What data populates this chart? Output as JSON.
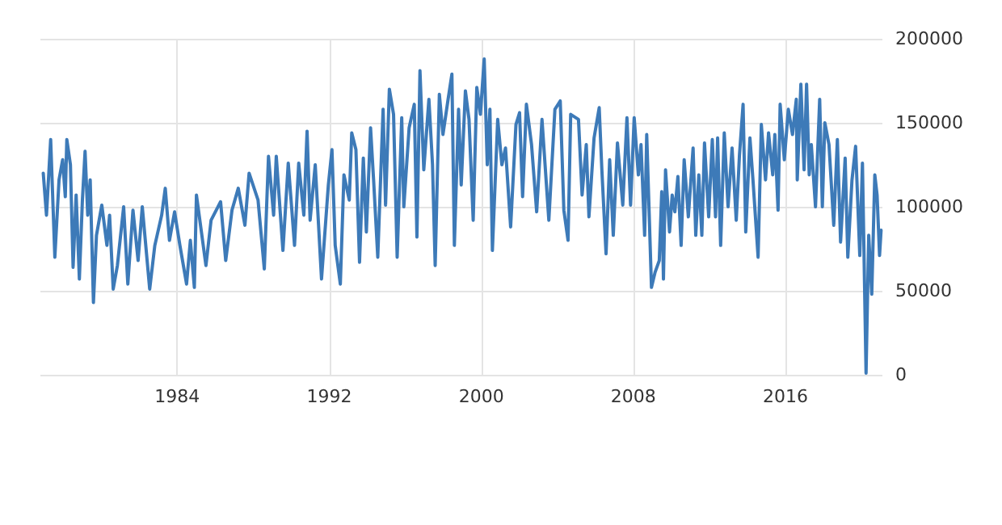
{
  "chart_data": {
    "type": "line",
    "x": [
      1976.95,
      1977.12,
      1977.34,
      1977.56,
      1977.78,
      1977.97,
      1978.11,
      1978.19,
      1978.38,
      1978.52,
      1978.68,
      1978.85,
      1979.01,
      1979.15,
      1979.29,
      1979.42,
      1979.59,
      1979.75,
      1980.03,
      1980.3,
      1980.44,
      1980.63,
      1980.85,
      1981.18,
      1981.4,
      1981.67,
      1981.94,
      1982.16,
      1982.55,
      1982.82,
      1983.18,
      1983.37,
      1983.59,
      1983.86,
      1984.14,
      1984.49,
      1984.69,
      1984.9,
      1985.01,
      1985.51,
      1985.78,
      1986.28,
      1986.55,
      1986.88,
      1987.21,
      1987.56,
      1987.78,
      1988.25,
      1988.58,
      1988.8,
      1989.07,
      1989.21,
      1989.56,
      1989.84,
      1990.17,
      1990.39,
      1990.66,
      1990.83,
      1990.99,
      1991.26,
      1991.59,
      1991.95,
      1992.14,
      1992.31,
      1992.58,
      1992.77,
      1993.05,
      1993.18,
      1993.4,
      1993.59,
      1993.79,
      1993.95,
      1994.17,
      1994.33,
      1994.55,
      1994.83,
      1994.96,
      1995.16,
      1995.38,
      1995.57,
      1995.81,
      1995.92,
      1996.2,
      1996.47,
      1996.61,
      1996.77,
      1996.97,
      1997.24,
      1997.43,
      1997.57,
      1997.79,
      1997.98,
      1998.25,
      1998.45,
      1998.58,
      1998.8,
      1998.94,
      1999.16,
      1999.35,
      1999.57,
      1999.76,
      1999.95,
      2000.15,
      2000.31,
      2000.45,
      2000.58,
      2000.86,
      2001.08,
      2001.27,
      2001.54,
      2001.82,
      2002.01,
      2002.17,
      2002.37,
      2002.64,
      2002.91,
      2003.19,
      2003.55,
      2003.87,
      2004.15,
      2004.34,
      2004.56,
      2004.7,
      2005.11,
      2005.3,
      2005.52,
      2005.66,
      2005.93,
      2006.2,
      2006.34,
      2006.56,
      2006.75,
      2006.94,
      2007.16,
      2007.44,
      2007.66,
      2007.85,
      2008.04,
      2008.26,
      2008.4,
      2008.59,
      2008.7,
      2008.95,
      2009.14,
      2009.36,
      2009.49,
      2009.58,
      2009.69,
      2009.9,
      2010.04,
      2010.18,
      2010.34,
      2010.51,
      2010.67,
      2010.89,
      2011.14,
      2011.28,
      2011.44,
      2011.6,
      2011.74,
      2011.96,
      2012.15,
      2012.32,
      2012.43,
      2012.59,
      2012.78,
      2012.98,
      2013.19,
      2013.41,
      2013.58,
      2013.77,
      2013.91,
      2014.13,
      2014.29,
      2014.56,
      2014.73,
      2014.95,
      2015.11,
      2015.33,
      2015.44,
      2015.61,
      2015.72,
      2015.94,
      2016.15,
      2016.37,
      2016.57,
      2016.62,
      2016.81,
      2016.98,
      2017.11,
      2017.25,
      2017.36,
      2017.58,
      2017.8,
      2017.94,
      2018.07,
      2018.29,
      2018.54,
      2018.73,
      2018.9,
      2019.14,
      2019.28,
      2019.5,
      2019.69,
      2019.91,
      2020.05,
      2020.24,
      2020.38,
      2020.54,
      2020.7,
      2020.82,
      2020.95,
      2021.03
    ],
    "series": [
      {
        "color": "#3d7ab8",
        "values": [
          120000,
          95000,
          140000,
          70000,
          116000,
          128000,
          106000,
          140000,
          125000,
          64000,
          107000,
          57000,
          104000,
          133000,
          95000,
          116000,
          43000,
          83000,
          101000,
          77000,
          95000,
          51000,
          65000,
          100000,
          54000,
          98000,
          68000,
          100000,
          51000,
          77000,
          95000,
          111000,
          80000,
          97000,
          77000,
          54000,
          80000,
          52000,
          107000,
          65000,
          92000,
          103000,
          68000,
          98000,
          111000,
          89000,
          120000,
          104000,
          63000,
          130000,
          95000,
          130000,
          74000,
          126000,
          77000,
          126000,
          95000,
          145000,
          92000,
          125000,
          57000,
          113000,
          134000,
          77000,
          54000,
          119000,
          104000,
          144000,
          134000,
          67000,
          129000,
          85000,
          147000,
          116000,
          70000,
          158000,
          101000,
          170000,
          155000,
          70000,
          153000,
          100000,
          147000,
          161000,
          82000,
          181000,
          122000,
          164000,
          125000,
          65000,
          167000,
          143000,
          164000,
          179000,
          77000,
          158000,
          113000,
          169000,
          152000,
          92000,
          171000,
          155000,
          188000,
          125000,
          158000,
          74000,
          152000,
          125000,
          135000,
          88000,
          149000,
          156000,
          106000,
          161000,
          137000,
          97000,
          152000,
          92000,
          158000,
          163000,
          98000,
          80000,
          155000,
          152000,
          107000,
          137000,
          94000,
          141000,
          159000,
          122000,
          72000,
          128000,
          83000,
          138000,
          101000,
          153000,
          101000,
          153000,
          119000,
          137000,
          83000,
          143000,
          52000,
          61000,
          68000,
          109000,
          57000,
          122000,
          85000,
          107000,
          97000,
          118000,
          77000,
          128000,
          94000,
          135000,
          83000,
          119000,
          83000,
          138000,
          94000,
          140000,
          94000,
          141000,
          77000,
          144000,
          100000,
          135000,
          92000,
          131000,
          161000,
          85000,
          141000,
          116000,
          70000,
          149000,
          116000,
          144000,
          119000,
          143000,
          98000,
          161000,
          128000,
          158000,
          143000,
          164000,
          116000,
          173000,
          122000,
          173000,
          119000,
          137000,
          100000,
          164000,
          100000,
          150000,
          137000,
          89000,
          140000,
          79000,
          129000,
          70000,
          116000,
          136000,
          71000,
          126000,
          1000,
          83000,
          48000,
          119000,
          107000,
          71000,
          86000
        ]
      }
    ],
    "xlim": [
      1976.8,
      2021.1
    ],
    "xticks": [
      1984,
      1992,
      2000,
      2008,
      2016
    ],
    "ylim": [
      0,
      200000
    ],
    "yticks": [
      0,
      50000,
      100000,
      150000,
      200000
    ],
    "grid": true,
    "marker": "none",
    "line_style": "solid"
  }
}
